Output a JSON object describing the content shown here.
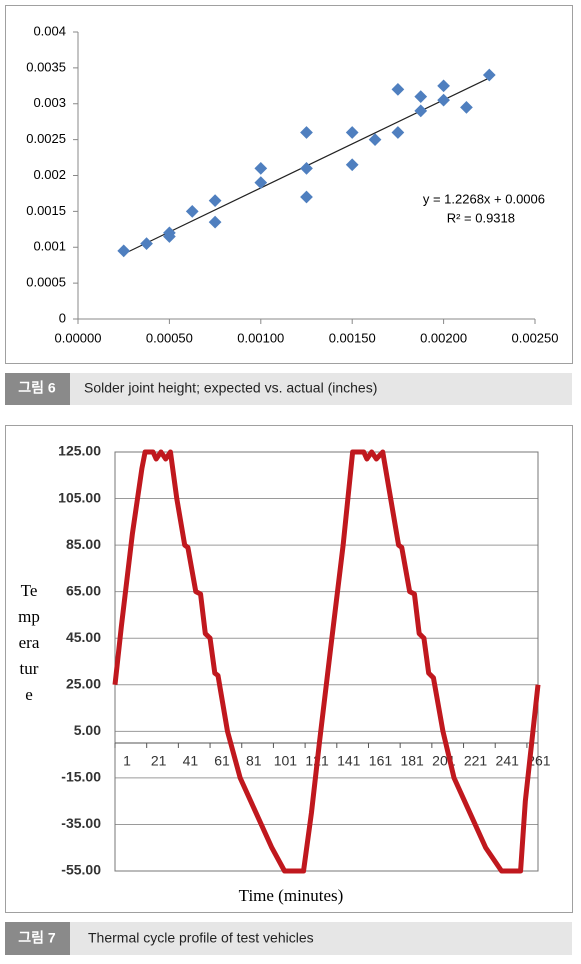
{
  "chart_data": [
    {
      "type": "scatter",
      "color": "#4f7fbf",
      "x": [
        0.00025,
        0.000375,
        0.0005,
        0.0005,
        0.000625,
        0.00075,
        0.00075,
        0.001,
        0.001,
        0.00125,
        0.00125,
        0.00125,
        0.0015,
        0.0015,
        0.001625,
        0.00175,
        0.00175,
        0.001875,
        0.001875,
        0.002,
        0.002,
        0.002125,
        0.00225
      ],
      "values": [
        0.00095,
        0.00105,
        0.0012,
        0.00115,
        0.0015,
        0.00165,
        0.00135,
        0.0021,
        0.0019,
        0.0026,
        0.0021,
        0.0017,
        0.0026,
        0.00215,
        0.0025,
        0.0032,
        0.0026,
        0.0031,
        0.0029,
        0.00325,
        0.00305,
        0.00295,
        0.0034
      ],
      "xlim": [
        0,
        0.0025
      ],
      "xticks": [
        {
          "value": 0,
          "label": "0.00000"
        },
        {
          "value": 0.0005,
          "label": "0.00050"
        },
        {
          "value": 0.001,
          "label": "0.00100"
        },
        {
          "value": 0.0015,
          "label": "0.00150"
        },
        {
          "value": 0.002,
          "label": "0.00200"
        },
        {
          "value": 0.0025,
          "label": "0.00250"
        }
      ],
      "ylim": [
        0,
        0.004
      ],
      "yticks": [
        0,
        0.0005,
        0.001,
        0.0015,
        0.002,
        0.0025,
        0.003,
        0.0035,
        0.004
      ],
      "trendline": {
        "equation": "y = 1.2268x + 0.0006",
        "r2_label": "R² = 0.9318",
        "slope": 1.2268,
        "intercept": 0.0006
      }
    },
    {
      "type": "line",
      "x_label": "Time (minutes)",
      "y_label": "Temperature",
      "color": "#c0181e",
      "grid": true,
      "x": [
        1,
        5,
        12,
        18,
        20,
        25,
        27,
        30,
        33,
        36,
        40,
        45,
        47,
        52,
        55,
        58,
        61,
        64,
        66,
        72,
        80,
        90,
        100,
        108,
        120,
        125,
        130,
        137,
        145,
        151,
        158,
        160,
        163,
        166,
        170,
        175,
        180,
        182,
        187,
        190,
        193,
        196,
        199,
        202,
        208,
        215,
        225,
        235,
        245,
        257,
        260,
        264,
        268
      ],
      "values": [
        25,
        50,
        90,
        118,
        125,
        125,
        122,
        125,
        122,
        125,
        105,
        85,
        84,
        65,
        64,
        47,
        45,
        30,
        29,
        5,
        -15,
        -30,
        -45,
        -55,
        -55,
        -30,
        0,
        40,
        85,
        125,
        125,
        122,
        125,
        122,
        125,
        105,
        85,
        84,
        65,
        64,
        47,
        45,
        30,
        28,
        5,
        -15,
        -30,
        -45,
        -55,
        -55,
        -25,
        0,
        25
      ],
      "xlim": [
        1,
        268
      ],
      "xticks": [
        1,
        21,
        41,
        61,
        81,
        101,
        121,
        141,
        161,
        181,
        201,
        221,
        241,
        261
      ],
      "ylim": [
        -55,
        125
      ],
      "yticks": [
        {
          "value": 125,
          "label": "125.00"
        },
        {
          "value": 105,
          "label": "105.00"
        },
        {
          "value": 85,
          "label": "85.00"
        },
        {
          "value": 65,
          "label": "65.00"
        },
        {
          "value": 45,
          "label": "45.00"
        },
        {
          "value": 25,
          "label": "25.00"
        },
        {
          "value": 5,
          "label": "5.00"
        },
        {
          "value": -15,
          "label": "-15.00"
        },
        {
          "value": -35,
          "label": "-35.00"
        },
        {
          "value": -55,
          "label": "-55.00"
        }
      ]
    }
  ],
  "captions": [
    {
      "label": "그림 6",
      "text": "Solder joint height; expected vs. actual (inches)"
    },
    {
      "label": "그림 7",
      "text": "Thermal cycle profile of test vehicles"
    }
  ]
}
